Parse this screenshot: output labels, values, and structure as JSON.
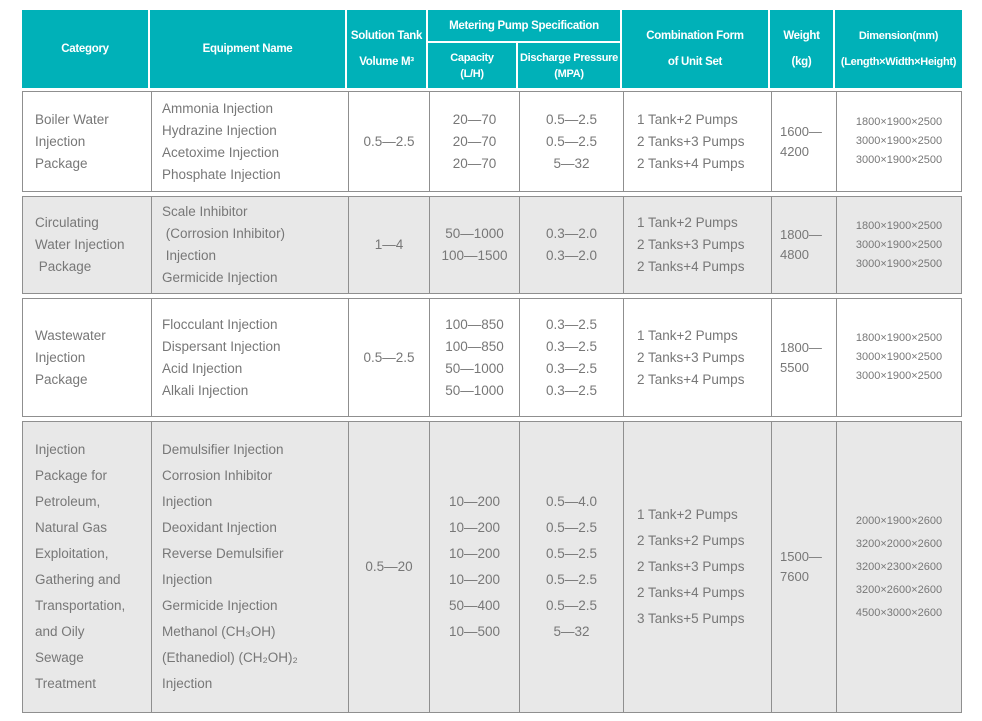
{
  "colors": {
    "header_teal": "#00B1B8",
    "row_alt_gray": "#E8E8E8",
    "border_gray": "#8F8F8F",
    "body_text_gray": "#777777"
  },
  "header": {
    "category": "Category",
    "equipment_name": "Equipment Name",
    "solution_tank": [
      "Solution Tank",
      "Volume M³"
    ],
    "metering_pump_spec": "Metering Pump Specification",
    "capacity": [
      "Capacity",
      "(L/H)"
    ],
    "discharge_pressure": [
      "Discharge Pressure",
      "(MPA)"
    ],
    "combination_form": [
      "Combination Form",
      "of Unit Set"
    ],
    "weight": [
      "Weight",
      "(kg)"
    ],
    "dimension": [
      "Dimension(mm)",
      "(Length×Width×Height)"
    ]
  },
  "rows": [
    {
      "category": [
        "Boiler Water",
        "Injection",
        "Package"
      ],
      "equipment": [
        "Ammonia Injection",
        "Hydrazine Injection",
        "Acetoxime Injection",
        "Phosphate Injection"
      ],
      "volume": "0.5—2.5",
      "capacity": [
        "20—70",
        "20—70",
        "20—70"
      ],
      "discharge": [
        "0.5—2.5",
        "0.5—2.5",
        "5—32"
      ],
      "combination": [
        "1 Tank+2 Pumps",
        "2 Tanks+3 Pumps",
        "2 Tanks+4 Pumps"
      ],
      "weight": [
        "1600—",
        "4200"
      ],
      "dimension": [
        "1800×1900×2500",
        "3000×1900×2500",
        "3000×1900×2500"
      ]
    },
    {
      "category": [
        "Circulating",
        "Water Injection",
        " Package"
      ],
      "equipment": [
        "Scale Inhibitor",
        " (Corrosion Inhibitor)",
        " Injection",
        "Germicide Injection"
      ],
      "volume": "1—4",
      "capacity": [
        "50—1000",
        "100—1500"
      ],
      "discharge": [
        "0.3—2.0",
        "0.3—2.0"
      ],
      "combination": [
        "1 Tank+2 Pumps",
        "2 Tanks+3 Pumps",
        "2 Tanks+4 Pumps"
      ],
      "weight": [
        "1800—",
        "4800"
      ],
      "dimension": [
        "1800×1900×2500",
        "3000×1900×2500",
        "3000×1900×2500"
      ]
    },
    {
      "category": [
        "Wastewater",
        "Injection",
        "Package"
      ],
      "equipment": [
        "Flocculant Injection",
        "Dispersant Injection",
        "Acid Injection",
        "Alkali Injection"
      ],
      "volume": "0.5—2.5",
      "capacity": [
        "100—850",
        "100—850",
        "50—1000",
        "50—1000"
      ],
      "discharge": [
        "0.3—2.5",
        "0.3—2.5",
        "0.3—2.5",
        "0.3—2.5"
      ],
      "combination": [
        "1 Tank+2 Pumps",
        "2 Tanks+3 Pumps",
        "2 Tanks+4 Pumps"
      ],
      "weight": [
        "1800—",
        "5500"
      ],
      "dimension": [
        "1800×1900×2500",
        "3000×1900×2500",
        "3000×1900×2500"
      ]
    },
    {
      "category": [
        "Injection",
        "Package for",
        "Petroleum,",
        "Natural Gas",
        "Exploitation,",
        "Gathering and",
        "Transportation,",
        "and Oily",
        "Sewage",
        "Treatment"
      ],
      "equipment": [
        "Demulsifier Injection",
        "Corrosion Inhibitor",
        "Injection",
        "Deoxidant Injection",
        "Reverse Demulsifier",
        "Injection",
        "Germicide Injection",
        "Methanol (CH₃OH)",
        "(Ethanediol) (CH₂OH)₂",
        "Injection"
      ],
      "volume": "0.5—20",
      "capacity": [
        "10—200",
        "10—200",
        "10—200",
        "10—200",
        "50—400",
        "10—500"
      ],
      "discharge": [
        "0.5—4.0",
        "0.5—2.5",
        "0.5—2.5",
        "0.5—2.5",
        "0.5—2.5",
        "5—32"
      ],
      "combination": [
        "1 Tank+2 Pumps",
        "2 Tanks+2 Pumps",
        "2 Tanks+3 Pumps",
        "2 Tanks+4 Pumps",
        "3 Tanks+5 Pumps"
      ],
      "weight": [
        "1500—",
        "7600"
      ],
      "dimension": [
        "2000×1900×2600",
        "3200×2000×2600",
        "3200×2300×2600",
        "3200×2600×2600",
        "4500×3000×2600"
      ]
    }
  ]
}
